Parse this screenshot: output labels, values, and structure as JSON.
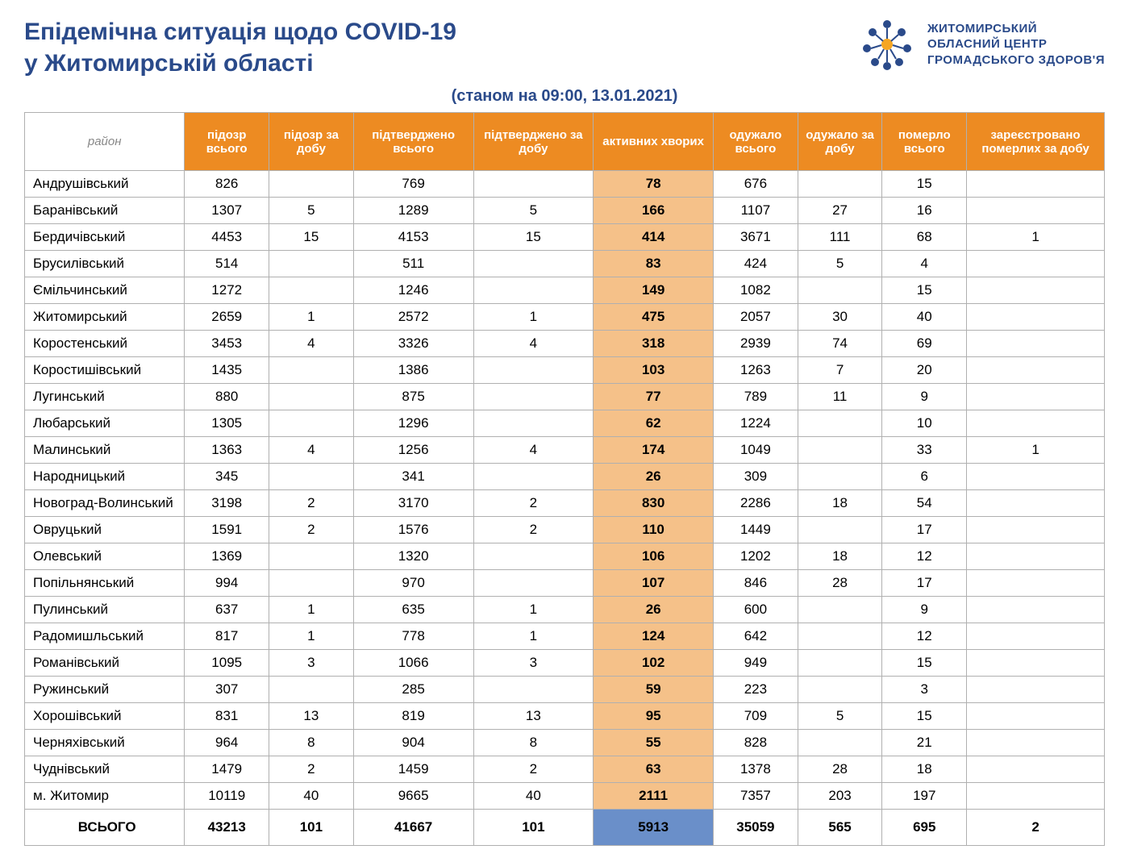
{
  "title_line1": "Епідемічна ситуація щодо COVID-19",
  "title_line2": "у Житомирській області",
  "logo_text_line1": "ЖИТОМИРСЬКИЙ",
  "logo_text_line2": "ОБЛАСНИЙ ЦЕНТР",
  "logo_text_line3": "ГРОМАДСЬКОГО ЗДОРОВ'Я",
  "timestamp": "(станом на 09:00, 13.01.2021)",
  "colors": {
    "header_bg": "#ed8b22",
    "header_text": "#ffffff",
    "title_text": "#2a4a8a",
    "active_bg": "#f5c189",
    "total_active_bg": "#6a8fc9",
    "border": "#b0b0b0",
    "region_header_text": "#888888"
  },
  "columns": [
    "район",
    "підозр всього",
    "підозр за добу",
    "підтверджено всього",
    "підтверджено за добу",
    "активних хворих",
    "одужало всього",
    "одужало за добу",
    "померло всього",
    "зареєстровано померлих за добу"
  ],
  "rows": [
    {
      "region": "Андрушівський",
      "suspect_total": "826",
      "suspect_day": "",
      "confirmed_total": "769",
      "confirmed_day": "",
      "active": "78",
      "recovered_total": "676",
      "recovered_day": "",
      "deaths_total": "15",
      "deaths_day": ""
    },
    {
      "region": "Баранівський",
      "suspect_total": "1307",
      "suspect_day": "5",
      "confirmed_total": "1289",
      "confirmed_day": "5",
      "active": "166",
      "recovered_total": "1107",
      "recovered_day": "27",
      "deaths_total": "16",
      "deaths_day": ""
    },
    {
      "region": "Бердичівський",
      "suspect_total": "4453",
      "suspect_day": "15",
      "confirmed_total": "4153",
      "confirmed_day": "15",
      "active": "414",
      "recovered_total": "3671",
      "recovered_day": "111",
      "deaths_total": "68",
      "deaths_day": "1"
    },
    {
      "region": "Брусилівський",
      "suspect_total": "514",
      "suspect_day": "",
      "confirmed_total": "511",
      "confirmed_day": "",
      "active": "83",
      "recovered_total": "424",
      "recovered_day": "5",
      "deaths_total": "4",
      "deaths_day": ""
    },
    {
      "region": "Ємільчинський",
      "suspect_total": "1272",
      "suspect_day": "",
      "confirmed_total": "1246",
      "confirmed_day": "",
      "active": "149",
      "recovered_total": "1082",
      "recovered_day": "",
      "deaths_total": "15",
      "deaths_day": ""
    },
    {
      "region": "Житомирський",
      "suspect_total": "2659",
      "suspect_day": "1",
      "confirmed_total": "2572",
      "confirmed_day": "1",
      "active": "475",
      "recovered_total": "2057",
      "recovered_day": "30",
      "deaths_total": "40",
      "deaths_day": ""
    },
    {
      "region": "Коростенський",
      "suspect_total": "3453",
      "suspect_day": "4",
      "confirmed_total": "3326",
      "confirmed_day": "4",
      "active": "318",
      "recovered_total": "2939",
      "recovered_day": "74",
      "deaths_total": "69",
      "deaths_day": ""
    },
    {
      "region": "Коростишівський",
      "suspect_total": "1435",
      "suspect_day": "",
      "confirmed_total": "1386",
      "confirmed_day": "",
      "active": "103",
      "recovered_total": "1263",
      "recovered_day": "7",
      "deaths_total": "20",
      "deaths_day": ""
    },
    {
      "region": "Лугинський",
      "suspect_total": "880",
      "suspect_day": "",
      "confirmed_total": "875",
      "confirmed_day": "",
      "active": "77",
      "recovered_total": "789",
      "recovered_day": "11",
      "deaths_total": "9",
      "deaths_day": ""
    },
    {
      "region": "Любарський",
      "suspect_total": "1305",
      "suspect_day": "",
      "confirmed_total": "1296",
      "confirmed_day": "",
      "active": "62",
      "recovered_total": "1224",
      "recovered_day": "",
      "deaths_total": "10",
      "deaths_day": ""
    },
    {
      "region": "Малинський",
      "suspect_total": "1363",
      "suspect_day": "4",
      "confirmed_total": "1256",
      "confirmed_day": "4",
      "active": "174",
      "recovered_total": "1049",
      "recovered_day": "",
      "deaths_total": "33",
      "deaths_day": "1"
    },
    {
      "region": "Народницький",
      "suspect_total": "345",
      "suspect_day": "",
      "confirmed_total": "341",
      "confirmed_day": "",
      "active": "26",
      "recovered_total": "309",
      "recovered_day": "",
      "deaths_total": "6",
      "deaths_day": ""
    },
    {
      "region": "Новоград-Волинський",
      "suspect_total": "3198",
      "suspect_day": "2",
      "confirmed_total": "3170",
      "confirmed_day": "2",
      "active": "830",
      "recovered_total": "2286",
      "recovered_day": "18",
      "deaths_total": "54",
      "deaths_day": ""
    },
    {
      "region": "Овруцький",
      "suspect_total": "1591",
      "suspect_day": "2",
      "confirmed_total": "1576",
      "confirmed_day": "2",
      "active": "110",
      "recovered_total": "1449",
      "recovered_day": "",
      "deaths_total": "17",
      "deaths_day": ""
    },
    {
      "region": "Олевський",
      "suspect_total": "1369",
      "suspect_day": "",
      "confirmed_total": "1320",
      "confirmed_day": "",
      "active": "106",
      "recovered_total": "1202",
      "recovered_day": "18",
      "deaths_total": "12",
      "deaths_day": ""
    },
    {
      "region": "Попільнянський",
      "suspect_total": "994",
      "suspect_day": "",
      "confirmed_total": "970",
      "confirmed_day": "",
      "active": "107",
      "recovered_total": "846",
      "recovered_day": "28",
      "deaths_total": "17",
      "deaths_day": ""
    },
    {
      "region": "Пулинський",
      "suspect_total": "637",
      "suspect_day": "1",
      "confirmed_total": "635",
      "confirmed_day": "1",
      "active": "26",
      "recovered_total": "600",
      "recovered_day": "",
      "deaths_total": "9",
      "deaths_day": ""
    },
    {
      "region": "Радомишльський",
      "suspect_total": "817",
      "suspect_day": "1",
      "confirmed_total": "778",
      "confirmed_day": "1",
      "active": "124",
      "recovered_total": "642",
      "recovered_day": "",
      "deaths_total": "12",
      "deaths_day": ""
    },
    {
      "region": "Романівський",
      "suspect_total": "1095",
      "suspect_day": "3",
      "confirmed_total": "1066",
      "confirmed_day": "3",
      "active": "102",
      "recovered_total": "949",
      "recovered_day": "",
      "deaths_total": "15",
      "deaths_day": ""
    },
    {
      "region": "Ружинський",
      "suspect_total": "307",
      "suspect_day": "",
      "confirmed_total": "285",
      "confirmed_day": "",
      "active": "59",
      "recovered_total": "223",
      "recovered_day": "",
      "deaths_total": "3",
      "deaths_day": ""
    },
    {
      "region": "Хорошівський",
      "suspect_total": "831",
      "suspect_day": "13",
      "confirmed_total": "819",
      "confirmed_day": "13",
      "active": "95",
      "recovered_total": "709",
      "recovered_day": "5",
      "deaths_total": "15",
      "deaths_day": ""
    },
    {
      "region": "Черняхівський",
      "suspect_total": "964",
      "suspect_day": "8",
      "confirmed_total": "904",
      "confirmed_day": "8",
      "active": "55",
      "recovered_total": "828",
      "recovered_day": "",
      "deaths_total": "21",
      "deaths_day": ""
    },
    {
      "region": "Чуднівський",
      "suspect_total": "1479",
      "suspect_day": "2",
      "confirmed_total": "1459",
      "confirmed_day": "2",
      "active": "63",
      "recovered_total": "1378",
      "recovered_day": "28",
      "deaths_total": "18",
      "deaths_day": ""
    },
    {
      "region": "м. Житомир",
      "suspect_total": "10119",
      "suspect_day": "40",
      "confirmed_total": "9665",
      "confirmed_day": "40",
      "active": "2111",
      "recovered_total": "7357",
      "recovered_day": "203",
      "deaths_total": "197",
      "deaths_day": ""
    }
  ],
  "total": {
    "label": "ВСЬОГО",
    "suspect_total": "43213",
    "suspect_day": "101",
    "confirmed_total": "41667",
    "confirmed_day": "101",
    "active": "5913",
    "recovered_total": "35059",
    "recovered_day": "565",
    "deaths_total": "695",
    "deaths_day": "2"
  }
}
